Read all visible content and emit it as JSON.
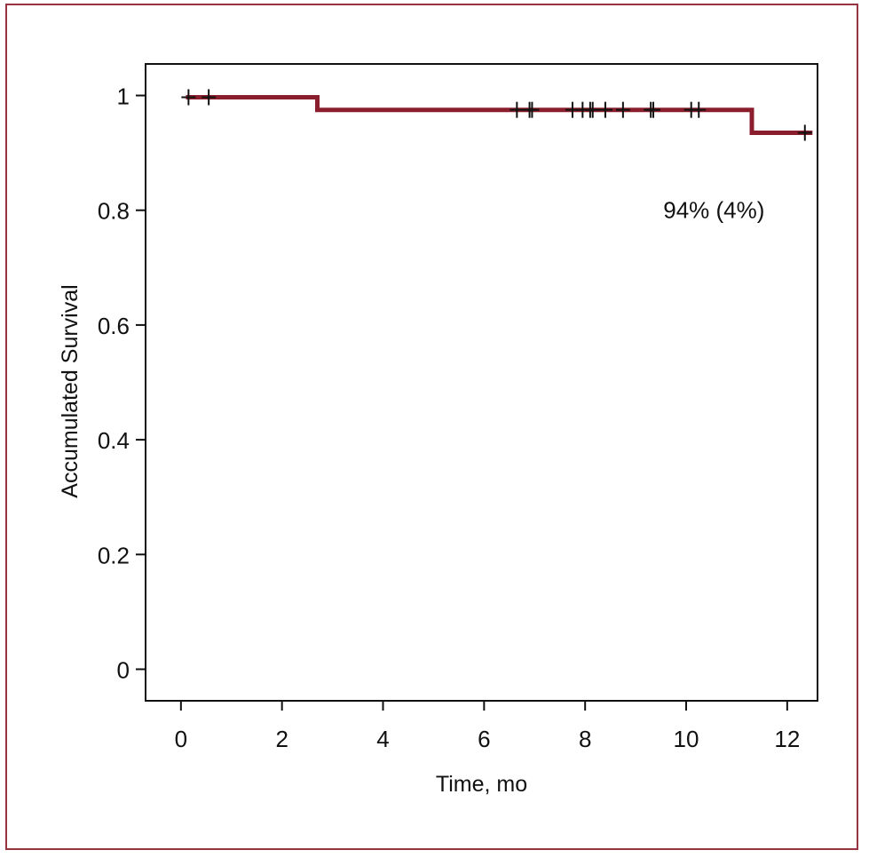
{
  "colors": {
    "frame": "#9a3340",
    "curve": "#8b1e2d",
    "censor": "#111111",
    "axis": "#111111"
  },
  "chart_data": {
    "type": "line",
    "subtype": "kaplan-meier",
    "title": "",
    "xlabel": "Time, mo",
    "ylabel": "Accumulated Survival",
    "xlim": [
      -0.7,
      12.6
    ],
    "ylim": [
      -0.055,
      1.055
    ],
    "x_ticks": [
      0,
      2,
      4,
      6,
      8,
      10,
      12
    ],
    "x_tick_labels": [
      "0",
      "2",
      "4",
      "6",
      "8",
      "10",
      "12"
    ],
    "y_ticks": [
      0,
      0.2,
      0.4,
      0.6,
      0.8,
      1
    ],
    "y_tick_labels": [
      "0",
      "0.2",
      "0.4",
      "0.6",
      "0.8",
      "1"
    ],
    "grid": false,
    "series": [
      {
        "step_points": [
          [
            0.1,
            0.997
          ],
          [
            2.7,
            0.997
          ],
          [
            2.7,
            0.975
          ],
          [
            11.3,
            0.975
          ],
          [
            11.3,
            0.935
          ],
          [
            12.5,
            0.935
          ]
        ],
        "censored": [
          [
            0.15,
            0.997
          ],
          [
            0.55,
            0.997
          ],
          [
            6.65,
            0.975
          ],
          [
            6.9,
            0.975
          ],
          [
            6.95,
            0.975
          ],
          [
            7.75,
            0.975
          ],
          [
            7.95,
            0.975
          ],
          [
            8.1,
            0.975
          ],
          [
            8.15,
            0.975
          ],
          [
            8.4,
            0.975
          ],
          [
            8.75,
            0.975
          ],
          [
            9.3,
            0.975
          ],
          [
            9.35,
            0.975
          ],
          [
            10.1,
            0.975
          ],
          [
            10.25,
            0.975
          ],
          [
            12.35,
            0.935
          ]
        ]
      }
    ],
    "annotations": [
      {
        "text": "94% (4%)",
        "x": 10.55,
        "y": 0.8
      }
    ]
  }
}
